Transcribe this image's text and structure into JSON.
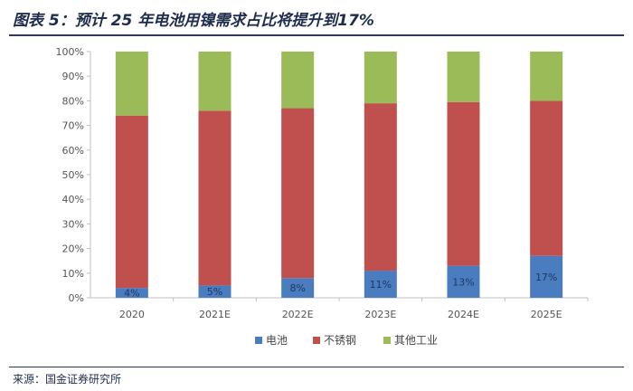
{
  "header": {
    "title": "图表 5：预计 25 年电池用镍需求占比将提升到17%"
  },
  "footer": {
    "source": "来源：国金证券研究所"
  },
  "chart_data": {
    "type": "bar",
    "stacked": true,
    "percent": true,
    "categories": [
      "2020",
      "2021E",
      "2022E",
      "2023E",
      "2024E",
      "2025E"
    ],
    "series": [
      {
        "name": "电池",
        "color": "#4a7cc0",
        "values": [
          4,
          5,
          8,
          11,
          13,
          17
        ],
        "labels": [
          "4%",
          "5%",
          "8%",
          "11%",
          "13%",
          "17%"
        ]
      },
      {
        "name": "不锈钢",
        "color": "#c0504d",
        "values": [
          70,
          71,
          69,
          68,
          66.5,
          63
        ]
      },
      {
        "name": "其他工业",
        "color": "#9bbb59",
        "values": [
          26,
          24,
          23,
          21,
          20.5,
          20
        ]
      }
    ],
    "ylim": [
      0,
      100
    ],
    "yticks": [
      "0%",
      "10%",
      "20%",
      "30%",
      "40%",
      "50%",
      "60%",
      "70%",
      "80%",
      "90%",
      "100%"
    ],
    "legend": "bottom",
    "grid": false
  }
}
